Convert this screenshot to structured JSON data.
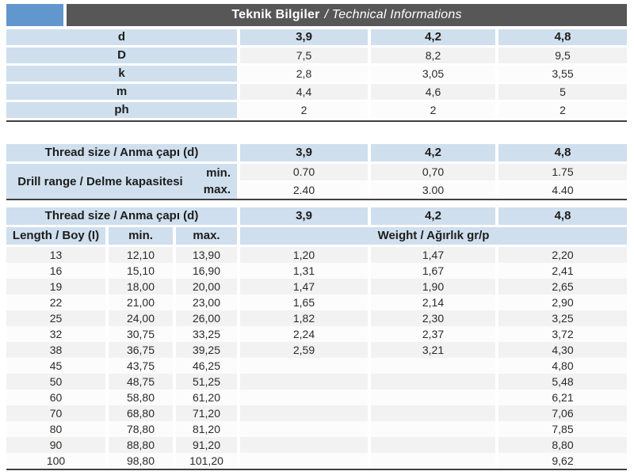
{
  "header": {
    "title_tr": "Teknik Bilgiler",
    "title_en": "/ Technical Informations"
  },
  "colors": {
    "accent_blue": "#6297ce",
    "titlebar_gray": "#575757",
    "cell_blue": "#cfdfee",
    "row_gray": "#f2f2f2",
    "row_white": "#fcfcfc",
    "rule_dark": "#3f3f3f"
  },
  "table1": {
    "header": {
      "label": "d",
      "v1": "3,9",
      "v2": "4,2",
      "v3": "4,8"
    },
    "rows": [
      {
        "label": "D",
        "v1": "7,5",
        "v2": "8,2",
        "v3": "9,5"
      },
      {
        "label": "k",
        "v1": "2,8",
        "v2": "3,05",
        "v3": "3,55"
      },
      {
        "label": "m",
        "v1": "4,4",
        "v2": "4,6",
        "v3": "5"
      },
      {
        "label": "ph",
        "v1": "2",
        "v2": "2",
        "v3": "2"
      }
    ]
  },
  "table2": {
    "header_label": "Thread size / Anma çapı (d)",
    "header_values": [
      "3,9",
      "4,2",
      "4,8"
    ],
    "range_label": "Drill range / Delme kapasitesi",
    "min_label": "min.",
    "max_label": "max.",
    "min_values": [
      "0.70",
      "0,70",
      "1.75"
    ],
    "max_values": [
      "2.40",
      "3.00",
      "4.40"
    ]
  },
  "table3": {
    "header_label": "Thread size / Anma çapı (d)",
    "header_values": [
      "3,9",
      "4,2",
      "4,8"
    ],
    "col_length": "Length / Boy (I)",
    "col_min": "min.",
    "col_max": "max.",
    "col_weight": "Weight / Ağırlık gr/p",
    "rows": [
      {
        "len": "13",
        "min": "12,10",
        "max": "13,90",
        "w1": "1,20",
        "w2": "1,47",
        "w3": "2,20"
      },
      {
        "len": "16",
        "min": "15,10",
        "max": "16,90",
        "w1": "1,31",
        "w2": "1,67",
        "w3": "2,41"
      },
      {
        "len": "19",
        "min": "18,00",
        "max": "20,00",
        "w1": "1,47",
        "w2": "1,90",
        "w3": "2,65"
      },
      {
        "len": "22",
        "min": "21,00",
        "max": "23,00",
        "w1": "1,65",
        "w2": "2,14",
        "w3": "2,90"
      },
      {
        "len": "25",
        "min": "24,00",
        "max": "26,00",
        "w1": "1,82",
        "w2": "2,30",
        "w3": "3,25"
      },
      {
        "len": "32",
        "min": "30,75",
        "max": "33,25",
        "w1": "2,24",
        "w2": "2,37",
        "w3": "3,72"
      },
      {
        "len": "38",
        "min": "36,75",
        "max": "39,25",
        "w1": "2,59",
        "w2": "3,21",
        "w3": "4,30"
      },
      {
        "len": "45",
        "min": "43,75",
        "max": "46,25",
        "w1": "",
        "w2": "",
        "w3": "4,80"
      },
      {
        "len": "50",
        "min": "48,75",
        "max": "51,25",
        "w1": "",
        "w2": "",
        "w3": "5,48"
      },
      {
        "len": "60",
        "min": "58,80",
        "max": "61,20",
        "w1": "",
        "w2": "",
        "w3": "6,21"
      },
      {
        "len": "70",
        "min": "68,80",
        "max": "71,20",
        "w1": "",
        "w2": "",
        "w3": "7,06"
      },
      {
        "len": "80",
        "min": "78,80",
        "max": "81,20",
        "w1": "",
        "w2": "",
        "w3": "7,85"
      },
      {
        "len": "90",
        "min": "88,80",
        "max": "91,20",
        "w1": "",
        "w2": "",
        "w3": "8,80"
      },
      {
        "len": "100",
        "min": "98,80",
        "max": "101,20",
        "w1": "",
        "w2": "",
        "w3": "9,62"
      }
    ]
  }
}
